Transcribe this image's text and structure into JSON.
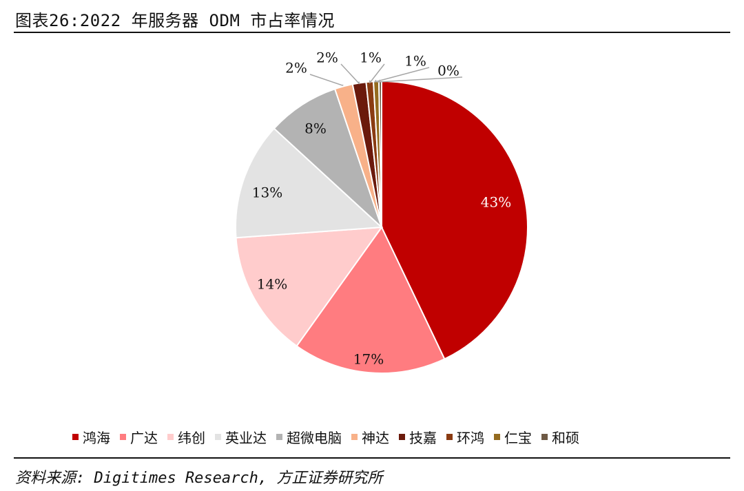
{
  "header": {
    "title": "图表26:2022 年服务器 ODM 市占率情况"
  },
  "footer": {
    "source": "资料来源: Digitimes Research, 方正证券研究所"
  },
  "chart_data": {
    "type": "pie",
    "series": [
      {
        "name": "鸿海",
        "value": 43,
        "label": "43%",
        "color": "#c00000"
      },
      {
        "name": "广达",
        "value": 17,
        "label": "17%",
        "color": "#ff7c80"
      },
      {
        "name": "纬创",
        "value": 14,
        "label": "14%",
        "color": "#ffcccc"
      },
      {
        "name": "英业达",
        "value": 13,
        "label": "13%",
        "color": "#e3e3e3"
      },
      {
        "name": "超微电脑",
        "value": 8,
        "label": "8%",
        "color": "#b3b3b3"
      },
      {
        "name": "神达",
        "value": 2,
        "label": "2%",
        "color": "#f8b189"
      },
      {
        "name": "技嘉",
        "value": 1.5,
        "label": "2%",
        "color": "#6b1a0c"
      },
      {
        "name": "环鸿",
        "value": 0.8,
        "label": "1%",
        "color": "#8a3b12"
      },
      {
        "name": "仁宝",
        "value": 0.6,
        "label": "1%",
        "color": "#946b1f"
      },
      {
        "name": "和硕",
        "value": 0.3,
        "label": "0%",
        "color": "#6e5a45"
      }
    ],
    "legend_position": "bottom"
  }
}
